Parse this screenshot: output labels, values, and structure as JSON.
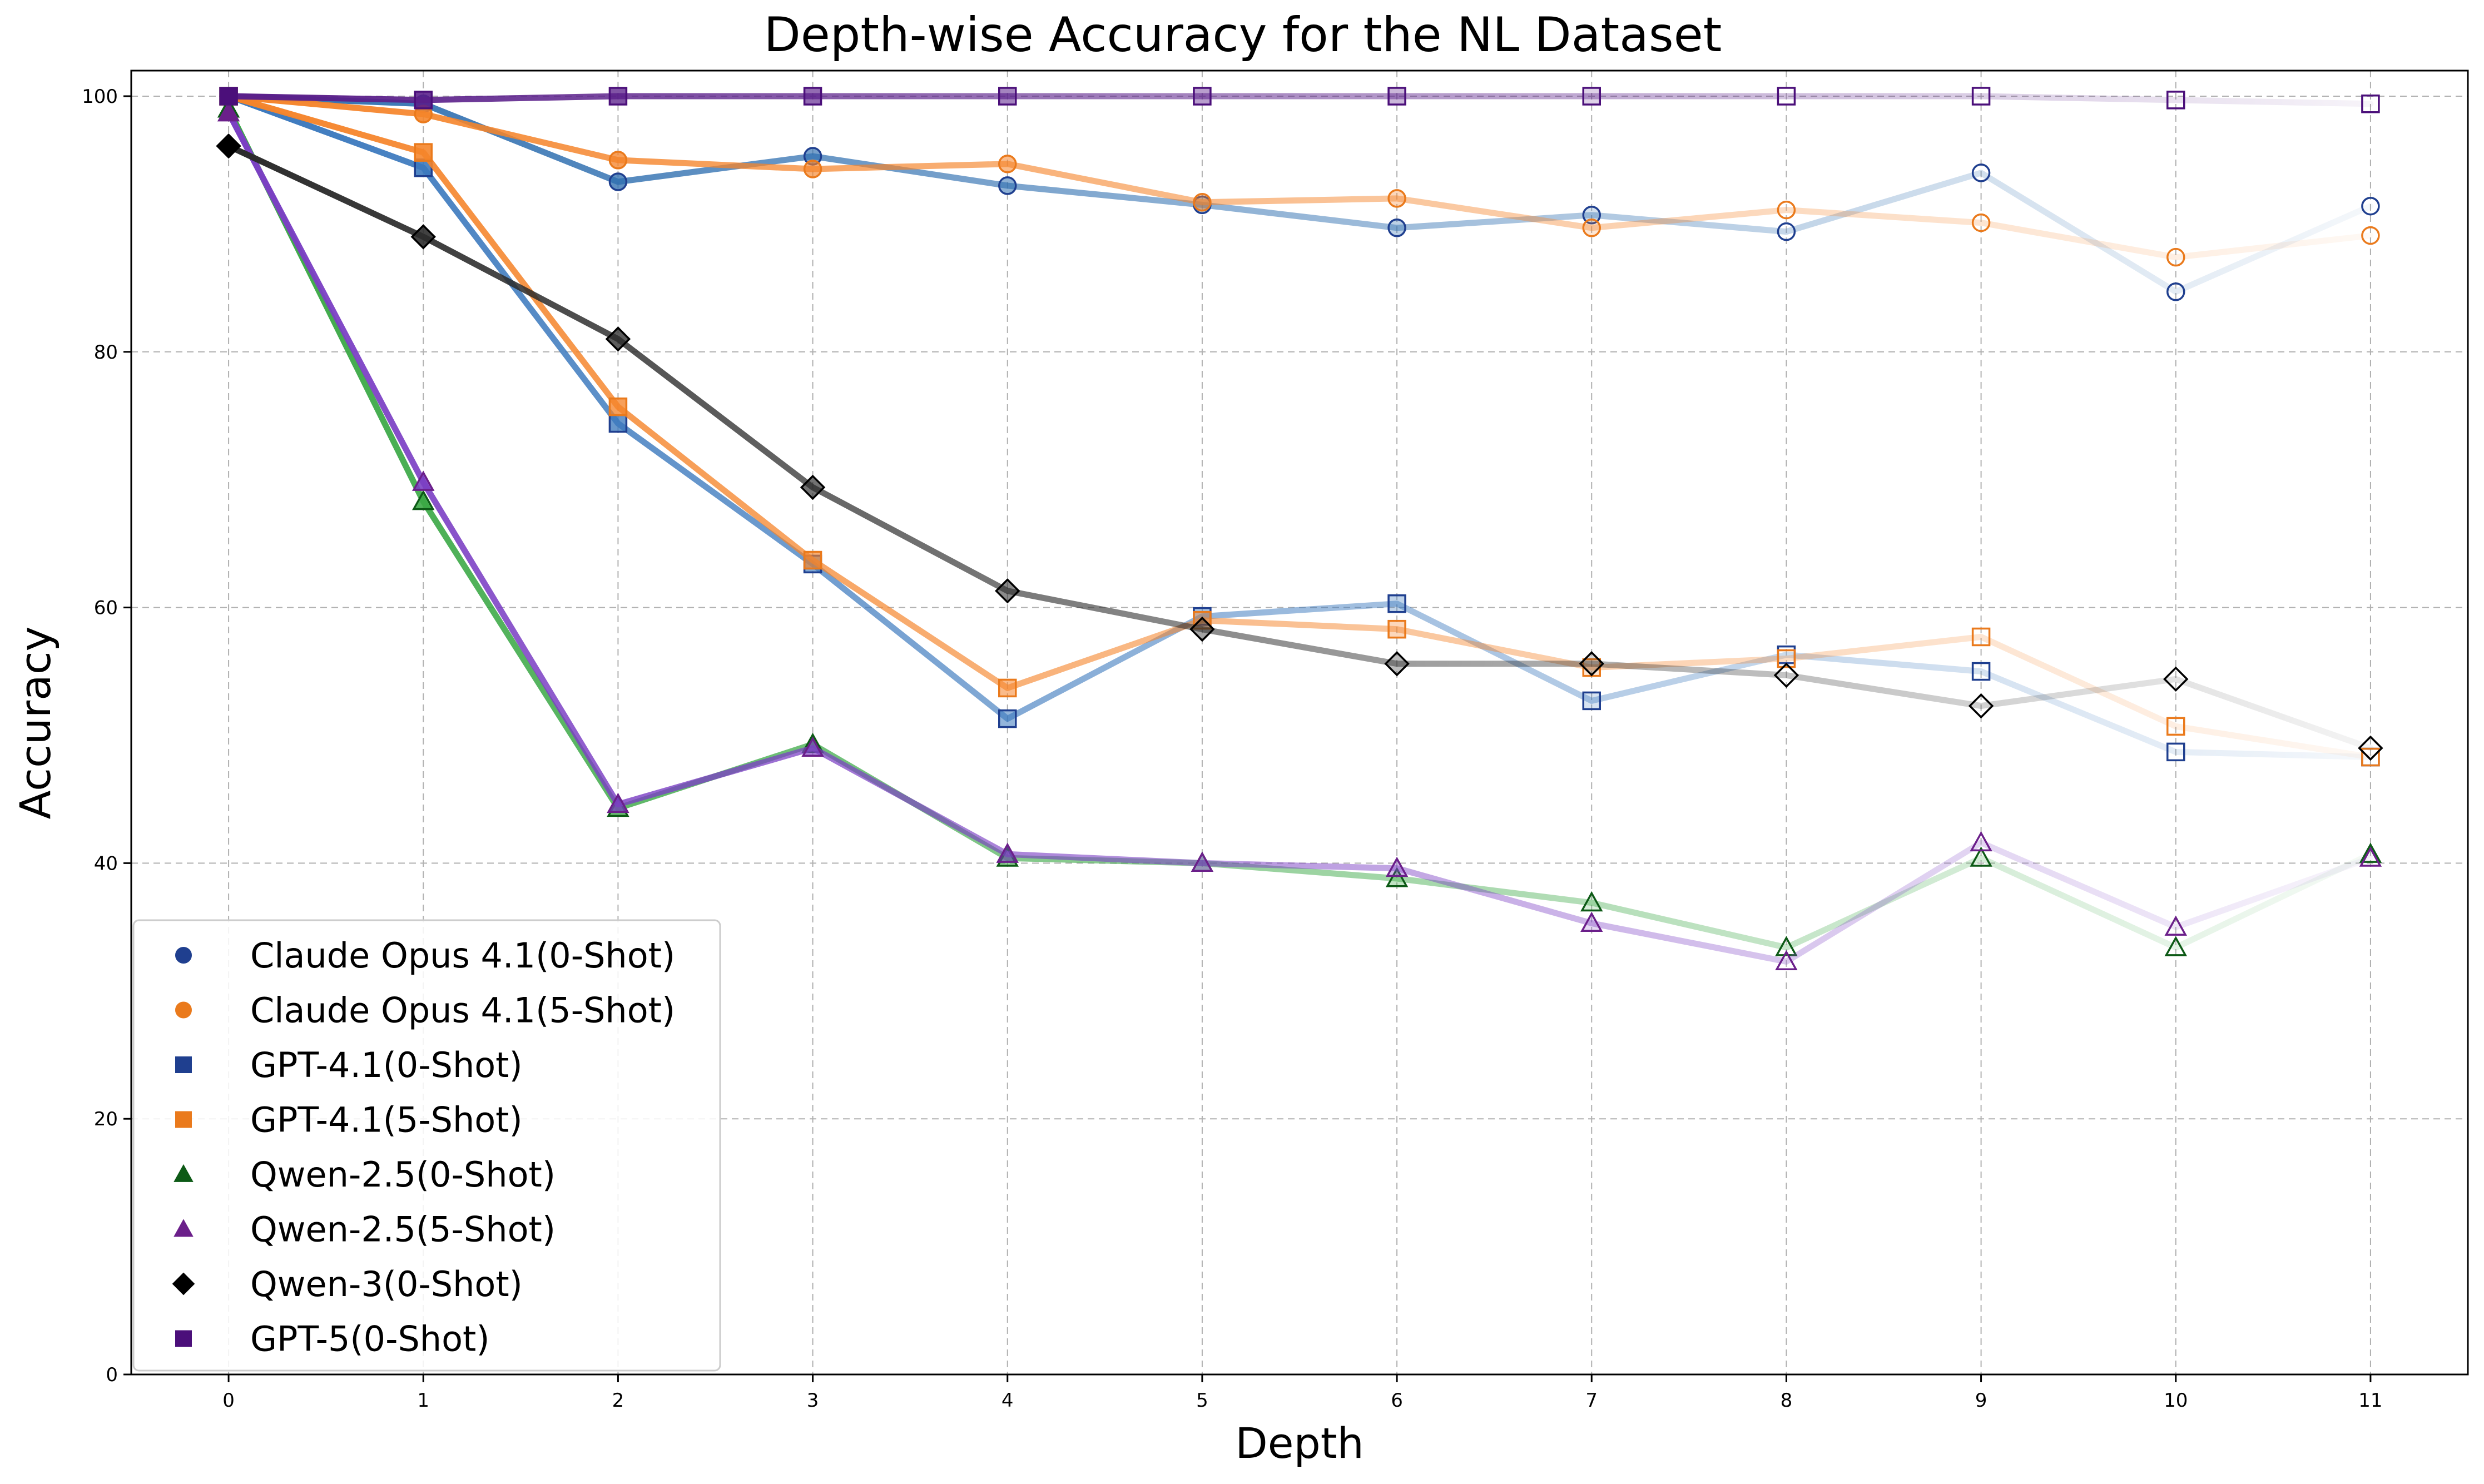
{
  "chart_data": {
    "type": "line",
    "title": "Depth-wise Accuracy for the NL Dataset",
    "xlabel": "Depth",
    "ylabel": "Accuracy",
    "x": [
      0,
      1,
      2,
      3,
      4,
      5,
      6,
      7,
      8,
      9,
      10,
      11
    ],
    "xlim": [
      -0.5,
      11.5
    ],
    "ylim": [
      0,
      102
    ],
    "yticks": [
      0,
      20,
      40,
      60,
      80,
      100
    ],
    "grid": true,
    "legend_position": "lower-left",
    "series": [
      {
        "name": "Claude Opus 4.1(0-Shot)",
        "marker": "circle",
        "line_color": "#2f6fb0",
        "marker_color": "#1f3f8f",
        "values": [
          100,
          99.4,
          93.3,
          95.3,
          93.0,
          91.5,
          89.7,
          90.7,
          89.4,
          94.0,
          84.7,
          91.4
        ]
      },
      {
        "name": "Claude Opus 4.1(5-Shot)",
        "marker": "circle",
        "line_color": "#f5842a",
        "marker_color": "#ea7a1c",
        "values": [
          100,
          98.6,
          95.0,
          94.3,
          94.7,
          91.7,
          92.0,
          89.7,
          91.1,
          90.1,
          87.4,
          89.1
        ]
      },
      {
        "name": "GPT-4.1(0-Shot)",
        "marker": "square",
        "line_color": "#3a78bd",
        "marker_color": "#1f3f8f",
        "values": [
          100,
          94.4,
          74.4,
          63.4,
          51.3,
          59.3,
          60.3,
          52.7,
          56.3,
          55.0,
          48.7,
          48.3
        ]
      },
      {
        "name": "GPT-4.1(5-Shot)",
        "marker": "square",
        "line_color": "#f5842a",
        "marker_color": "#ea7a1c",
        "values": [
          100,
          95.6,
          75.7,
          63.7,
          53.7,
          59.0,
          58.3,
          55.3,
          56.0,
          57.7,
          50.7,
          48.3
        ]
      },
      {
        "name": "Qwen-2.5(0-Shot)",
        "marker": "triangle",
        "line_color": "#3aa845",
        "marker_color": "#0d5a16",
        "values": [
          99.0,
          68.3,
          44.3,
          49.3,
          40.4,
          40.0,
          38.8,
          36.9,
          33.4,
          40.4,
          33.4,
          40.7
        ]
      },
      {
        "name": "Qwen-2.5(5-Shot)",
        "marker": "triangle",
        "line_color": "#7b3fc4",
        "marker_color": "#6b1f8a",
        "values": [
          98.7,
          69.8,
          44.6,
          49.0,
          40.7,
          40.0,
          39.6,
          35.3,
          32.3,
          41.6,
          35.0,
          40.4
        ]
      },
      {
        "name": "Qwen-3(0-Shot)",
        "marker": "diamond",
        "line_color": "#2b2b2b",
        "marker_color": "#000000",
        "values": [
          96.1,
          89.0,
          81.0,
          69.4,
          61.3,
          58.3,
          55.6,
          55.6,
          54.7,
          52.3,
          54.4,
          49.0
        ]
      },
      {
        "name": "GPT-5(0-Shot)",
        "marker": "square",
        "line_color": "#5a1f8a",
        "marker_color": "#4b0f7a",
        "values": [
          100,
          99.7,
          100,
          100,
          100,
          100,
          100,
          100,
          100,
          100,
          99.7,
          99.4
        ]
      }
    ]
  }
}
